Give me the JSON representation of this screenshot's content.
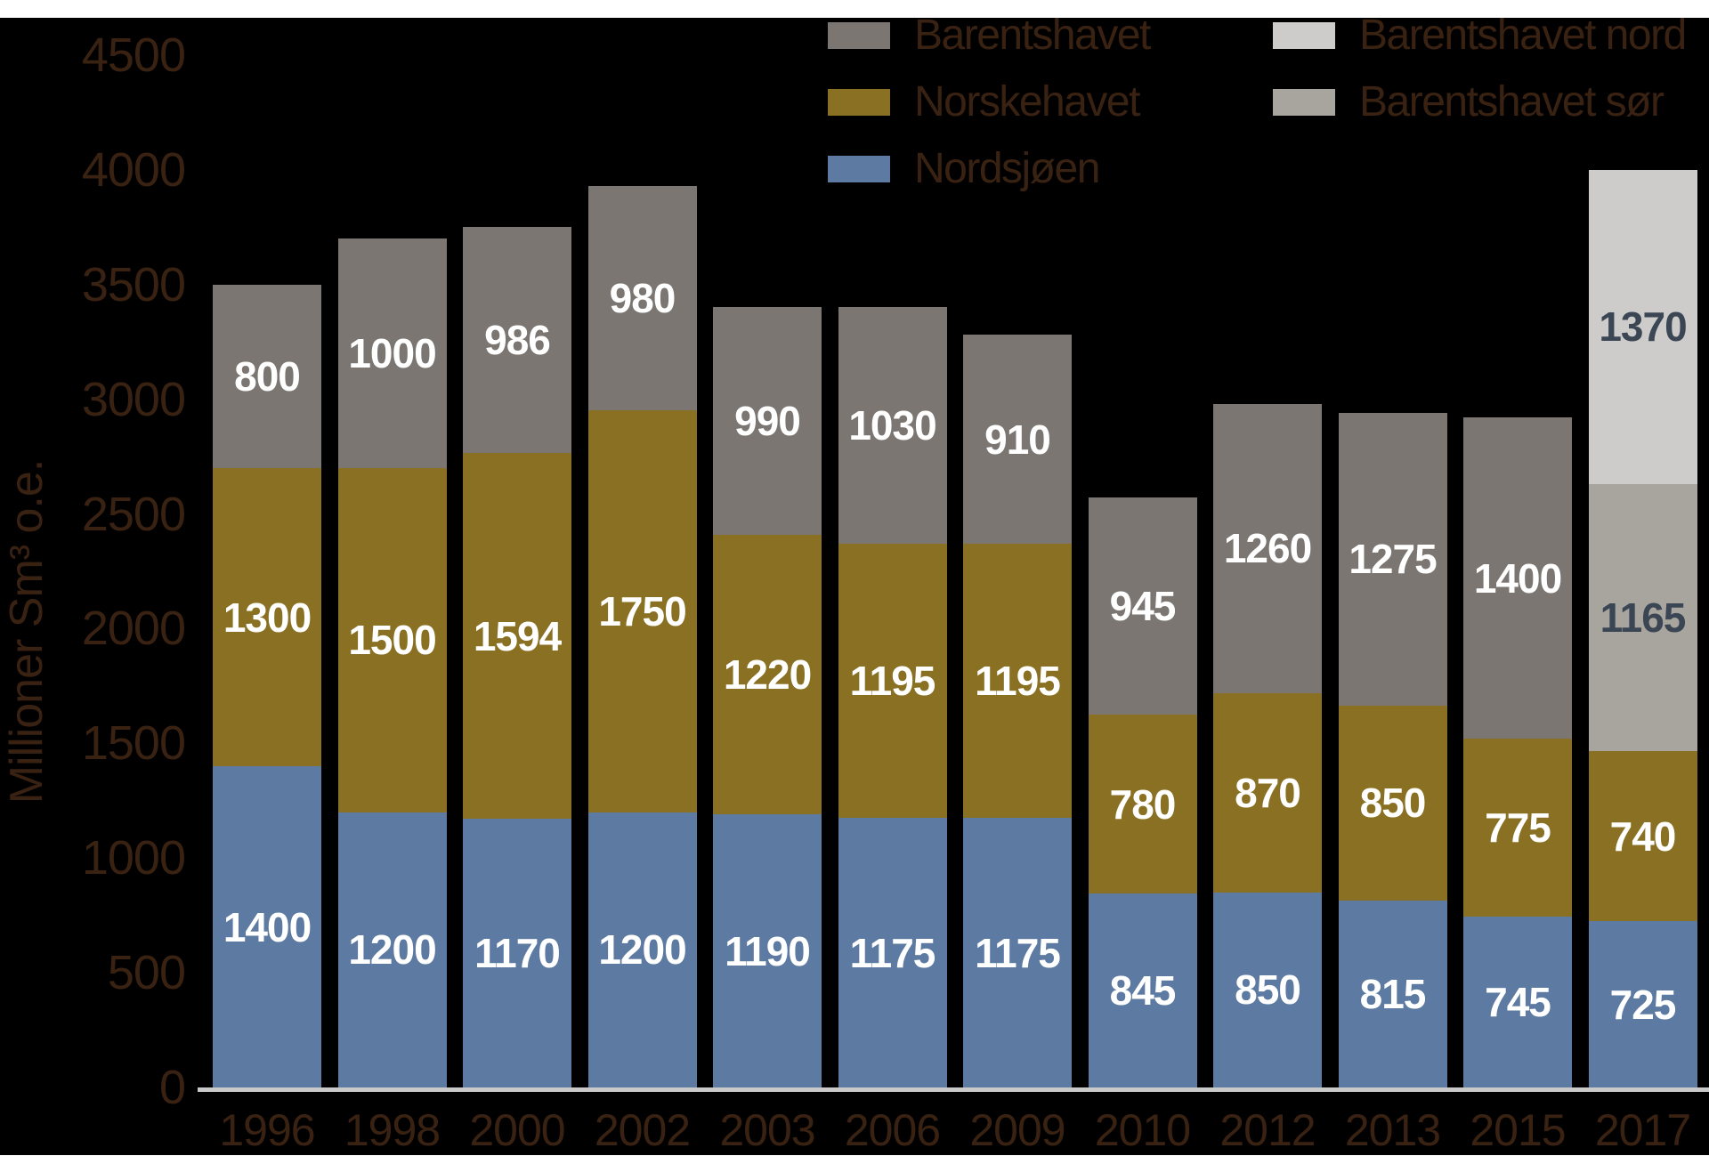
{
  "chart_data": {
    "type": "bar",
    "stacked": true,
    "title": "",
    "xlabel": "",
    "ylabel": "Millioner Sm³ o.e.",
    "ylim": [
      0,
      4500
    ],
    "ytick_step": 500,
    "yticks": [
      0,
      500,
      1000,
      1500,
      2000,
      2500,
      3000,
      3500,
      4000,
      4500
    ],
    "grid": false,
    "legend_position": "top",
    "categories": [
      "1996",
      "1998",
      "2000",
      "2002",
      "2003",
      "2006",
      "2009",
      "2010",
      "2012",
      "2013",
      "2015",
      "2017"
    ],
    "series": [
      {
        "name": "Nordsjøen",
        "color": "#5d7aa2",
        "label_color": "#ffffff",
        "values": [
          1400,
          1200,
          1170,
          1200,
          1190,
          1175,
          1175,
          845,
          850,
          815,
          745,
          725
        ]
      },
      {
        "name": "Norskehavet",
        "color": "#8a7023",
        "label_color": "#ffffff",
        "values": [
          1300,
          1500,
          1594,
          1750,
          1220,
          1195,
          1195,
          780,
          870,
          850,
          775,
          740
        ]
      },
      {
        "name": "Barentshavet",
        "color": "#7b7671",
        "label_color": "#ffffff",
        "values": [
          800,
          1000,
          986,
          980,
          990,
          1030,
          910,
          945,
          1260,
          1275,
          1400,
          null
        ]
      },
      {
        "name": "Barentshavet sør",
        "color": "#a8a49e",
        "label_color": "#3b4654",
        "values": [
          null,
          null,
          null,
          null,
          null,
          null,
          null,
          null,
          null,
          null,
          null,
          1165
        ]
      },
      {
        "name": "Barentshavet nord",
        "color": "#cdccca",
        "label_color": "#3b4654",
        "values": [
          null,
          null,
          null,
          null,
          null,
          null,
          null,
          null,
          null,
          null,
          null,
          1370
        ]
      }
    ],
    "legend": {
      "columns": [
        {
          "items": [
            {
              "label": "Barentshavet",
              "color": "#7b7671"
            },
            {
              "label": "Norskehavet",
              "color": "#8a7023"
            },
            {
              "label": "Nordsjøen",
              "color": "#5d7aa2"
            }
          ]
        },
        {
          "items": [
            {
              "label": "Barentshavet nord",
              "color": "#cdccca"
            },
            {
              "label": "Barentshavet sør",
              "color": "#a8a49e"
            }
          ]
        }
      ]
    },
    "colors": {
      "background": "#000000",
      "page": "#ffffff",
      "axis_text": "#3a2213",
      "axis_line": "#c9c9c9",
      "bar_label_light": "#ffffff",
      "bar_label_dark": "#3b4654"
    }
  }
}
